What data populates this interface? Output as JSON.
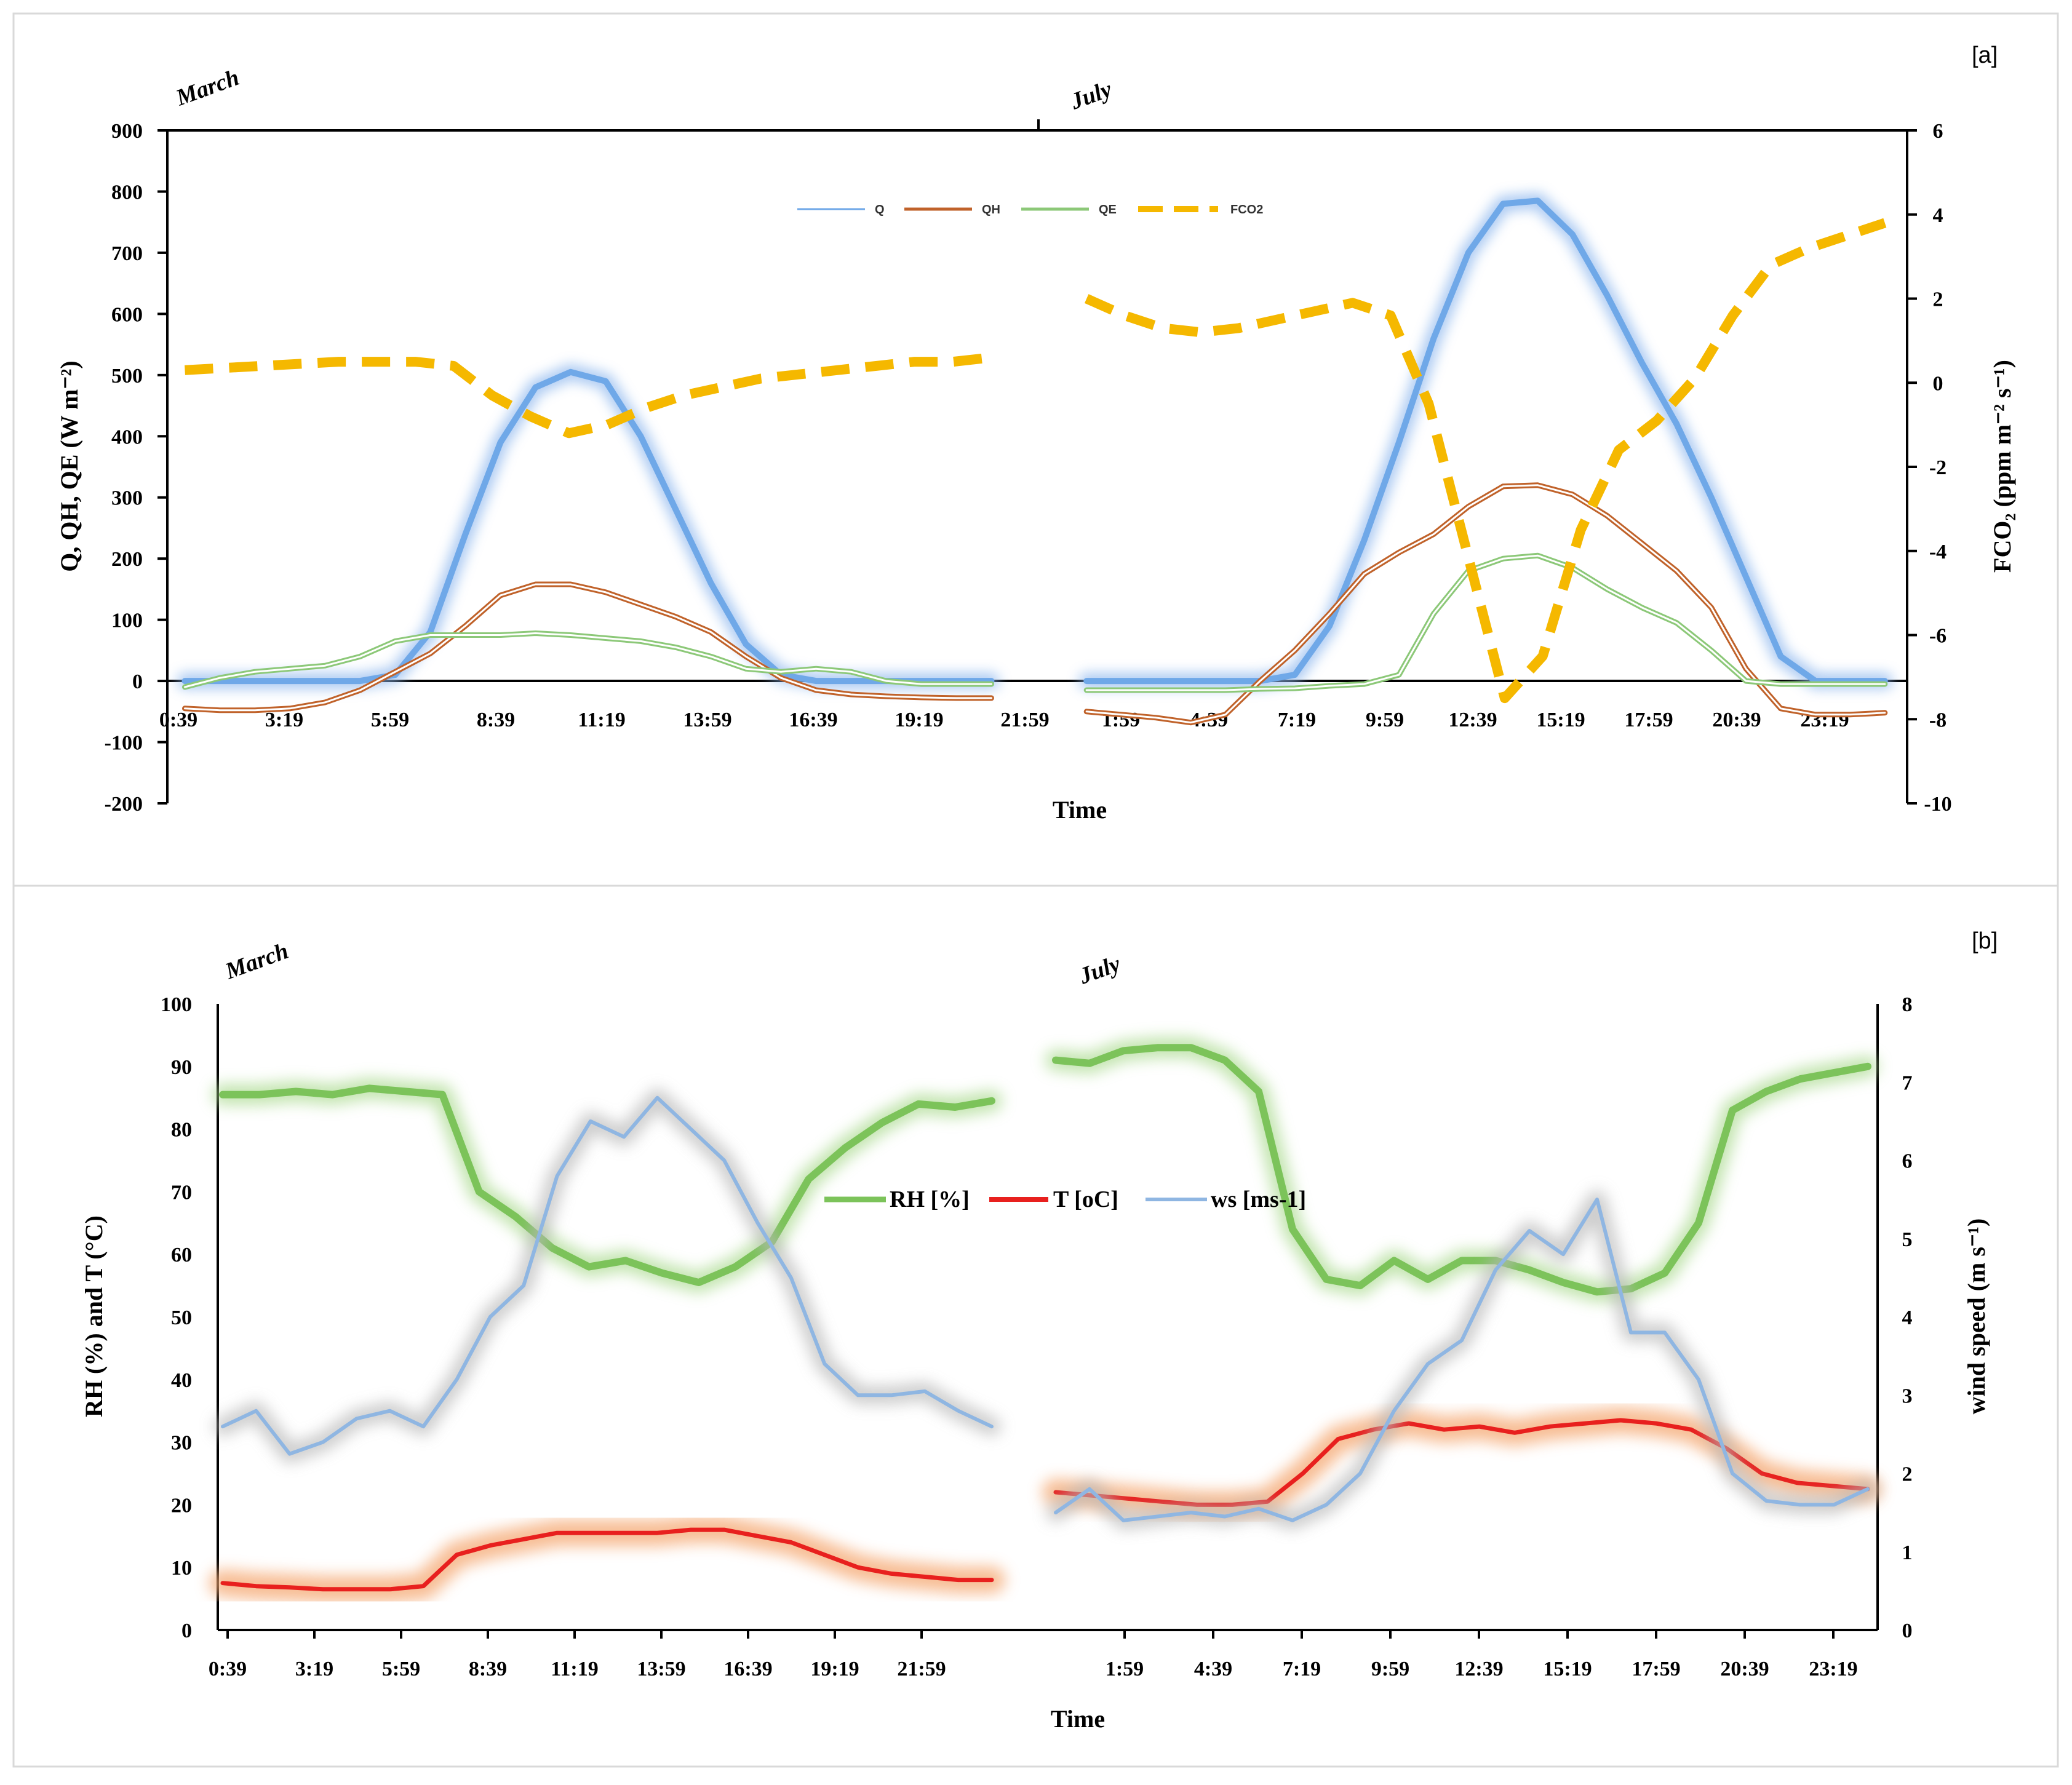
{
  "colors": {
    "Q": "#6fa8e8",
    "Q_glow": "#8fb8ee",
    "QH": "#c0622a",
    "QE": "#8cc878",
    "FCO2": "#f5b800",
    "RH": "#7cc35a",
    "RH_glow": "#a8d98c",
    "T": "#e8201e",
    "T_glow": "#f5a872",
    "ws": "#8fb6e2",
    "ws_glow": "#b8b8b8"
  },
  "chart_data": [
    {
      "id": "a",
      "panel_label": "[a]",
      "type": "line",
      "months": [
        "March",
        "July"
      ],
      "xlabel": "Time",
      "ylabel_left": "Q, QH, QE (W m⁻²)",
      "ylabel_right": "FCO₂ (ppm  m⁻² s⁻¹)",
      "ylim_left": [
        -200,
        900
      ],
      "ylim_right": [
        -10,
        6
      ],
      "yticks_left": [
        "900",
        "800",
        "700",
        "600",
        "500",
        "400",
        "300",
        "200",
        "100",
        "0",
        "-100",
        "-200"
      ],
      "yticks_right": [
        "6",
        "4",
        "2",
        "0",
        "-2",
        "-4",
        "-6",
        "-8",
        "-10"
      ],
      "xticks_march": [
        "0:39",
        "3:19",
        "5:59",
        "8:39",
        "11:19",
        "13:59",
        "16:39",
        "19:19",
        "21:59"
      ],
      "xticks_july": [
        "1:59",
        "4:39",
        "7:19",
        "9:59",
        "12:39",
        "15:19",
        "17:59",
        "20:39",
        "23:19"
      ],
      "legend": [
        "Q",
        "QH",
        "QE",
        "FCO2"
      ],
      "x_hours": [
        0.5,
        1.5,
        2.5,
        3.5,
        4.5,
        5.5,
        6.5,
        7.5,
        8.5,
        9.5,
        10.5,
        11.5,
        12.5,
        13.5,
        14.5,
        15.5,
        16.5,
        17.5,
        18.5,
        19.5,
        20.5,
        21.5,
        22.5,
        23.5
      ],
      "series": [
        {
          "name": "Q",
          "axis": "left",
          "march": [
            0,
            0,
            0,
            0,
            0,
            0,
            10,
            80,
            240,
            390,
            480,
            505,
            490,
            400,
            280,
            160,
            60,
            10,
            0,
            0,
            0,
            0,
            0,
            0
          ],
          "july": [
            0,
            0,
            0,
            0,
            0,
            0,
            10,
            90,
            230,
            390,
            560,
            700,
            780,
            785,
            730,
            630,
            520,
            420,
            300,
            170,
            40,
            0,
            0,
            0
          ]
        },
        {
          "name": "QH",
          "axis": "left",
          "march": [
            -45,
            -48,
            -48,
            -45,
            -35,
            -15,
            15,
            45,
            90,
            140,
            158,
            158,
            145,
            125,
            105,
            80,
            40,
            5,
            -15,
            -22,
            -25,
            -27,
            -28,
            -28
          ],
          "july": [
            -50,
            -55,
            -60,
            -68,
            -55,
            0,
            50,
            110,
            175,
            210,
            240,
            285,
            318,
            320,
            305,
            270,
            225,
            180,
            120,
            20,
            -45,
            -55,
            -55,
            -52
          ]
        },
        {
          "name": "QE",
          "axis": "left",
          "march": [
            -10,
            5,
            15,
            20,
            25,
            40,
            65,
            75,
            75,
            75,
            78,
            75,
            70,
            65,
            55,
            40,
            20,
            15,
            20,
            15,
            0,
            -5,
            -5,
            -5
          ],
          "july": [
            -15,
            -15,
            -15,
            -15,
            -15,
            -13,
            -12,
            -8,
            -5,
            10,
            110,
            180,
            200,
            205,
            185,
            150,
            120,
            95,
            50,
            0,
            -5,
            -5,
            -5,
            -5
          ]
        },
        {
          "name": "FCO2",
          "axis": "right",
          "march": [
            0.3,
            0.35,
            0.4,
            0.45,
            0.5,
            0.5,
            0.5,
            0.4,
            -0.3,
            -0.8,
            -1.2,
            -1.0,
            -0.6,
            -0.3,
            -0.1,
            0.1,
            0.2,
            0.3,
            0.4,
            0.5,
            0.5,
            0.6
          ],
          "july": [
            2.0,
            1.6,
            1.3,
            1.2,
            1.3,
            1.5,
            1.7,
            1.9,
            1.6,
            -0.5,
            -4.0,
            -7.5,
            -6.5,
            -3.5,
            -1.6,
            -0.9,
            0.1,
            1.6,
            2.8,
            3.2,
            3.5,
            3.8
          ]
        }
      ]
    },
    {
      "id": "b",
      "panel_label": "[b]",
      "type": "line",
      "months": [
        "March",
        "July"
      ],
      "xlabel": "Time",
      "ylabel_left": "RH (%) and T (°C)",
      "ylabel_right": "wind speed (m s⁻¹)",
      "ylim_left": [
        0,
        100
      ],
      "ylim_right": [
        0,
        8
      ],
      "yticks_left": [
        "100",
        "90",
        "80",
        "70",
        "60",
        "50",
        "40",
        "30",
        "20",
        "10",
        "0"
      ],
      "yticks_right": [
        "8",
        "7",
        "6",
        "5",
        "4",
        "3",
        "2",
        "1",
        "0"
      ],
      "xticks_march": [
        "0:39",
        "3:19",
        "5:59",
        "8:39",
        "11:19",
        "13:59",
        "16:39",
        "19:19",
        "21:59"
      ],
      "xticks_july": [
        "1:59",
        "4:39",
        "7:19",
        "9:59",
        "12:39",
        "15:19",
        "17:59",
        "20:39",
        "23:19"
      ],
      "legend": [
        "RH [%]",
        "T [oC]",
        "ws [ms-1]"
      ],
      "series": [
        {
          "name": "RH [%]",
          "axis": "left",
          "march": [
            85.5,
            85.5,
            86,
            85.5,
            86.5,
            86,
            85.5,
            70,
            66,
            61,
            58,
            59,
            57,
            55.5,
            58,
            62,
            72,
            77,
            81,
            84,
            83.5,
            84.5
          ],
          "july": [
            91,
            90.5,
            92.5,
            93,
            93,
            91,
            86,
            64,
            56,
            55,
            59,
            56,
            59,
            59,
            57.5,
            55.5,
            54,
            54.5,
            57,
            65,
            83,
            86,
            88,
            89,
            90
          ]
        },
        {
          "name": "T [oC]",
          "axis": "left",
          "march": [
            7.5,
            7,
            6.8,
            6.5,
            6.5,
            6.5,
            7,
            12,
            13.5,
            14.5,
            15.5,
            15.5,
            15.5,
            15.5,
            16,
            16,
            15,
            14,
            12,
            10,
            9,
            8.5,
            8,
            8
          ],
          "july": [
            22,
            21.5,
            21,
            20.5,
            20,
            20,
            20.5,
            25,
            30.5,
            32,
            33,
            32,
            32.5,
            31.5,
            32.5,
            33,
            33.5,
            33,
            32,
            29,
            25,
            23.5,
            23,
            22.5
          ]
        },
        {
          "name": "ws [ms-1]",
          "axis": "right",
          "march": [
            2.6,
            2.8,
            2.25,
            2.4,
            2.7,
            2.8,
            2.6,
            3.2,
            4.0,
            4.4,
            5.8,
            6.5,
            6.3,
            6.8,
            6.4,
            6.0,
            5.2,
            4.5,
            3.4,
            3.0,
            3.0,
            3.05,
            2.8,
            2.6
          ],
          "july": [
            1.5,
            1.8,
            1.4,
            1.45,
            1.5,
            1.45,
            1.55,
            1.4,
            1.6,
            2.0,
            2.8,
            3.4,
            3.7,
            4.6,
            5.1,
            4.8,
            5.5,
            3.8,
            3.8,
            3.2,
            2.0,
            1.65,
            1.6,
            1.6,
            1.8
          ]
        }
      ]
    }
  ]
}
